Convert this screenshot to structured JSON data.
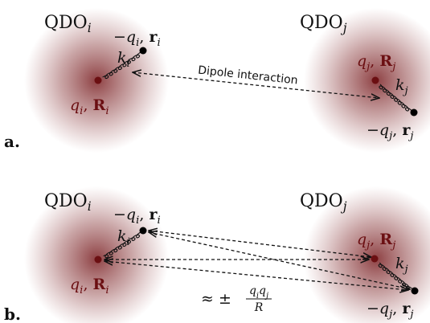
{
  "panels": [
    {
      "label": "a.",
      "qdo_i": [
        "QDO",
        "i"
      ],
      "qdo_j": [
        "QDO",
        "j"
      ],
      "electron_i": [
        "−q",
        "i",
        ", ",
        "r",
        "i"
      ],
      "spring_i": [
        "k",
        "i"
      ],
      "nucleus_i": [
        "q",
        "i",
        ", ",
        "R",
        "i"
      ],
      "electron_j": [
        "−q",
        "j",
        ", ",
        "r",
        "j"
      ],
      "spring_j": [
        "k",
        "j"
      ],
      "nucleus_j": [
        "q",
        "j",
        ", ",
        "R",
        "j"
      ],
      "interaction": "Dipole interaction"
    },
    {
      "label": "b.",
      "qdo_i": [
        "QDO",
        "i"
      ],
      "qdo_j": [
        "QDO",
        "j"
      ],
      "electron_i": [
        "−q",
        "i",
        ", ",
        "r",
        "i"
      ],
      "spring_i": [
        "k",
        "i"
      ],
      "nucleus_i": [
        "q",
        "i",
        ", ",
        "R",
        "i"
      ],
      "electron_j": [
        "−q",
        "j",
        ", ",
        "r",
        "j"
      ],
      "spring_j": [
        "k",
        "j"
      ],
      "nucleus_j": [
        "q",
        "j",
        ", ",
        "R",
        "j"
      ],
      "interaction": {
        "prefix": "≈ ±",
        "numerator": [
          "q",
          "i",
          "q",
          "j"
        ],
        "denominator": [
          "R"
        ]
      }
    }
  ]
}
